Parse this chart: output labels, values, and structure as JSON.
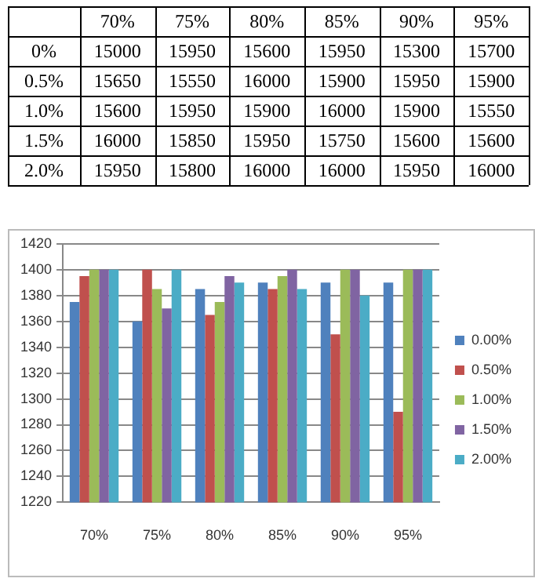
{
  "chart_data": [
    {
      "type": "heatmap",
      "categories": [
        "70%",
        "75%",
        "80%",
        "85%",
        "90%",
        "95%"
      ],
      "y_categories": [
        "0%",
        "0.5%",
        "1.0%",
        "1.5%",
        "2.0%"
      ],
      "data_labels": true,
      "cells": [
        [
          15000,
          15950,
          15600,
          15950,
          15300,
          15700
        ],
        [
          15650,
          15550,
          16000,
          15900,
          15950,
          15900
        ],
        [
          15600,
          15950,
          15900,
          16000,
          15900,
          15550
        ],
        [
          16000,
          15850,
          15950,
          15750,
          15600,
          15600
        ],
        [
          15950,
          15800,
          16000,
          16000,
          15950,
          16000
        ]
      ]
    },
    {
      "type": "bar",
      "categories": [
        "70%",
        "75%",
        "80%",
        "85%",
        "90%",
        "95%"
      ],
      "series": [
        {
          "name": "0.00%",
          "color": "#4f81bd",
          "values": [
            1375,
            1360,
            1385,
            1390,
            1390,
            1390
          ]
        },
        {
          "name": "0.50%",
          "color": "#c0504d",
          "values": [
            1395,
            1400,
            1365,
            1385,
            1350,
            1290
          ]
        },
        {
          "name": "1.00%",
          "color": "#9bbb59",
          "values": [
            1400,
            1385,
            1375,
            1395,
            1400,
            1400
          ]
        },
        {
          "name": "1.50%",
          "color": "#8064a2",
          "values": [
            1400,
            1370,
            1395,
            1400,
            1400,
            1400
          ]
        },
        {
          "name": "2.00%",
          "color": "#4bacc6",
          "values": [
            1400,
            1400,
            1390,
            1385,
            1380,
            1400
          ]
        }
      ],
      "ylim": [
        1220,
        1420
      ],
      "yticks": [
        1220,
        1240,
        1260,
        1280,
        1300,
        1320,
        1340,
        1360,
        1380,
        1400,
        1420
      ],
      "grid": "y",
      "legend": "right"
    }
  ]
}
